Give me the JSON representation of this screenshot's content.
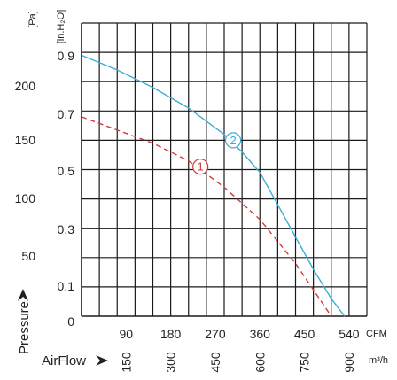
{
  "chart_data": {
    "type": "line",
    "grid": true,
    "x_primary": {
      "unit": "CFM",
      "ticks": [
        "90",
        "180",
        "270",
        "360",
        "450",
        "540"
      ],
      "range": [
        0,
        576
      ]
    },
    "x_secondary": {
      "unit": "m³/h",
      "ticks": [
        "150",
        "300",
        "450",
        "600",
        "750",
        "900"
      ]
    },
    "y_primary": {
      "unit": "[in.H₂O]",
      "ticks": [
        "0",
        "0.1",
        "0.3",
        "0.5",
        "0.7",
        "0.9"
      ],
      "range": [
        0,
        1.0
      ]
    },
    "y_secondary": {
      "unit": "[Pa]",
      "ticks": [
        "50",
        "100",
        "150",
        "200"
      ]
    },
    "xlabel": "AirFlow",
    "ylabel": "Pressure",
    "series": [
      {
        "label": "1",
        "color": "#d23a3a",
        "style": "dashed",
        "points": [
          [
            0,
            0.68
          ],
          [
            72,
            0.635
          ],
          [
            144,
            0.59
          ],
          [
            216,
            0.53
          ],
          [
            288,
            0.44
          ],
          [
            360,
            0.33
          ],
          [
            432,
            0.18
          ],
          [
            504,
            0.0
          ]
        ]
      },
      {
        "label": "2",
        "color": "#3aaed8",
        "style": "solid",
        "points": [
          [
            0,
            0.89
          ],
          [
            72,
            0.84
          ],
          [
            144,
            0.78
          ],
          [
            216,
            0.71
          ],
          [
            288,
            0.62
          ],
          [
            324,
            0.56
          ],
          [
            360,
            0.49
          ],
          [
            396,
            0.38
          ],
          [
            432,
            0.27
          ],
          [
            468,
            0.16
          ],
          [
            504,
            0.06
          ],
          [
            531,
            0.0
          ]
        ]
      }
    ]
  }
}
